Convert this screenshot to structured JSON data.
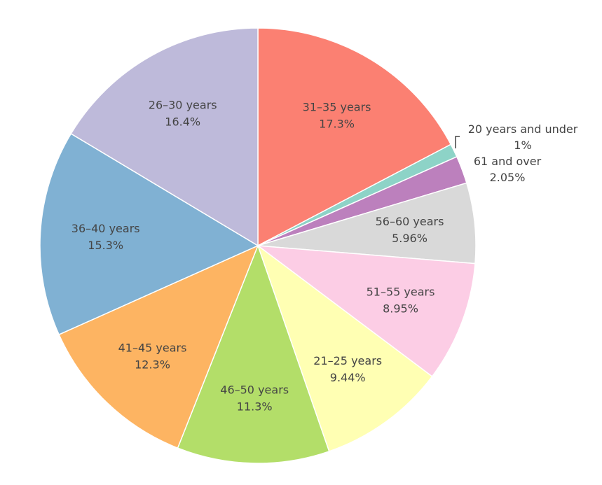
{
  "chart_data": {
    "type": "pie",
    "title": "",
    "direction": "clockwise",
    "start_angle_deg": 0,
    "slices": [
      {
        "label": "31–35 years",
        "value": 17.3,
        "percent_label": "17.3%",
        "color": "#fb8072"
      },
      {
        "label": "20 years and under",
        "value": 1.0,
        "percent_label": "1%",
        "color": "#8dd3c7"
      },
      {
        "label": "61 and over",
        "value": 2.05,
        "percent_label": "2.05%",
        "color": "#bc80bd"
      },
      {
        "label": "56–60 years",
        "value": 5.96,
        "percent_label": "5.96%",
        "color": "#d9d9d9"
      },
      {
        "label": "51–55 years",
        "value": 8.95,
        "percent_label": "8.95%",
        "color": "#fccde5"
      },
      {
        "label": "21–25 years",
        "value": 9.44,
        "percent_label": "9.44%",
        "color": "#ffffb3"
      },
      {
        "label": "46–50 years",
        "value": 11.3,
        "percent_label": "11.3%",
        "color": "#b3de69"
      },
      {
        "label": "41–45 years",
        "value": 12.3,
        "percent_label": "12.3%",
        "color": "#fdb462"
      },
      {
        "label": "36–40 years",
        "value": 15.3,
        "percent_label": "15.3%",
        "color": "#80b1d3"
      },
      {
        "label": "26–30 years",
        "value": 16.4,
        "percent_label": "16.4%",
        "color": "#bebada"
      }
    ]
  }
}
